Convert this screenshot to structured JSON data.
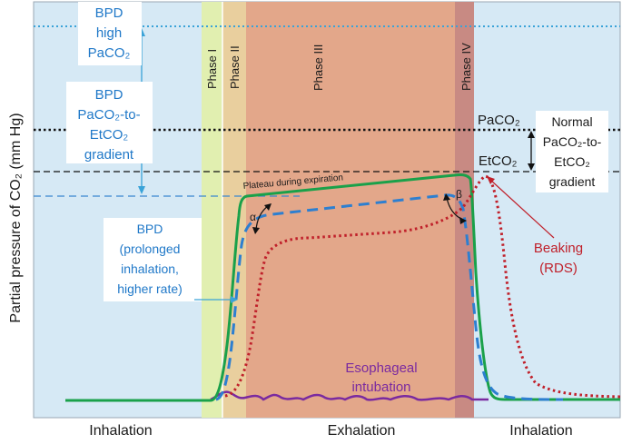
{
  "y_axis_label": "Partial pressure of CO₂ (mm Hg)",
  "phases": [
    {
      "label": "Phase I",
      "color": "#e1efb0"
    },
    {
      "label": "Phase II",
      "color": "#e9cf9e"
    },
    {
      "label": "Phase III",
      "color": "#e3a78a"
    },
    {
      "label": "Phase IV",
      "color": "#c88a83"
    }
  ],
  "x_labels": {
    "left": "Inhalation",
    "middle": "Exhalation",
    "right": "Inhalation"
  },
  "annotations": {
    "bpd_high": [
      "BPD",
      "high",
      "PaCO₂"
    ],
    "bpd_gradient": [
      "BPD",
      "PaCO₂-to-",
      "EtCO₂",
      "gradient"
    ],
    "normal_gradient": [
      "Normal",
      "PaCO₂-to-",
      "EtCO₂",
      "gradient"
    ],
    "paco2": "PaCO₂",
    "etco2": "EtCO₂",
    "plateau": "Plateau during expiration",
    "alpha": "α",
    "beta": "β",
    "bpd_prolonged": [
      "BPD",
      "(prolonged",
      "inhalation,",
      "higher rate)"
    ],
    "beaking": [
      "Beaking",
      "(RDS)"
    ],
    "esophageal": [
      "Esophageal",
      "intubation"
    ]
  },
  "colors": {
    "background": "#d6e9f5",
    "normal_curve": "#1aa14a",
    "bpd_curve": "#2d7fd0",
    "rds_curve": "#c0202a",
    "esophageal_curve": "#7a2aa0",
    "bpd_text": "#1f78c8",
    "rds_text": "#c0202a",
    "esophageal_text": "#7a2aa0"
  }
}
